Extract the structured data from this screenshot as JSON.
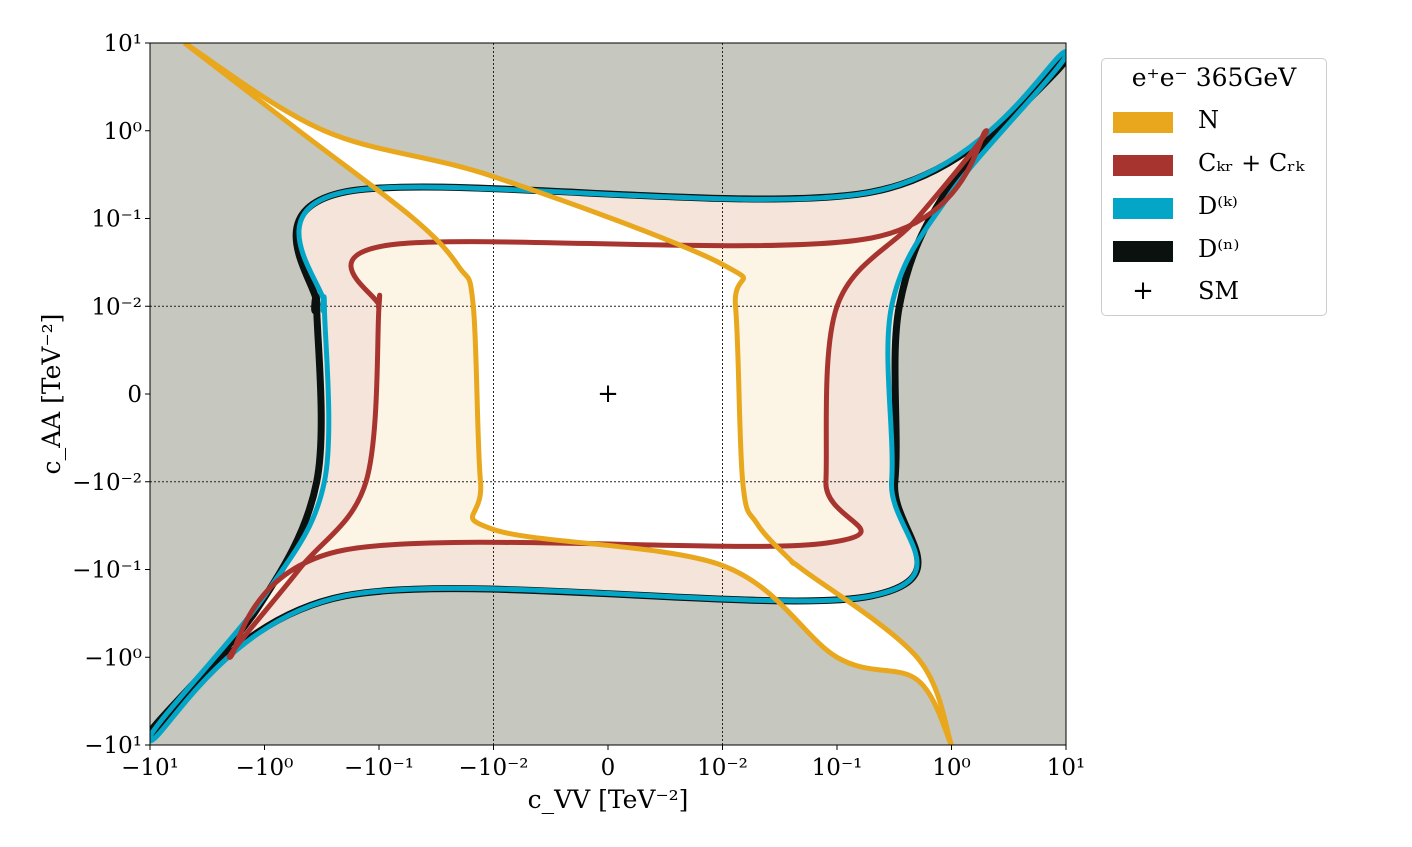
{
  "chart_data": {
    "type": "line",
    "xlabel": "c_{VV} [TeV^{-2}]",
    "ylabel": "c_{AA} [TeV^{-2}]",
    "xscale": "symlog",
    "yscale": "symlog",
    "linthresh": 0.01,
    "xlim": [
      -10,
      10
    ],
    "ylim": [
      -10,
      10
    ],
    "x_tick_values": [
      -10,
      -1,
      -0.1,
      -0.01,
      0,
      0.01,
      0.1,
      1,
      10
    ],
    "y_tick_values": [
      -10,
      -1,
      -0.1,
      -0.01,
      0,
      0.01,
      0.1,
      1,
      10
    ],
    "x_tick_labels": [
      "−10¹",
      "−10⁰",
      "−10⁻¹",
      "−10⁻²",
      "0",
      "10⁻²",
      "10⁻¹",
      "10⁰",
      "10¹"
    ],
    "y_tick_labels": [
      "−10¹",
      "−10⁰",
      "−10⁻¹",
      "−10⁻²",
      "0",
      "10⁻²",
      "10⁻¹",
      "10⁰",
      "10¹"
    ],
    "grid": "dotted lines at ±10⁻² on both axes",
    "background_color": "#c6c7bf",
    "legend_title": "e⁺e⁻ 365GeV",
    "legend_placement": "outside right, top",
    "series": [
      {
        "name": "N",
        "color": "#e8a71c",
        "fill": "#f4ebe6",
        "contours": [
          {
            "points": [
              [
                -5,
                10
              ],
              [
                -0.5,
                1
              ],
              [
                -0.05,
                0.1
              ],
              [
                -0.02,
                0.028
              ],
              [
                -0.015,
                0.01
              ],
              [
                -0.013,
                -0.01
              ],
              [
                -0.01,
                -0.035
              ],
              [
                0.01,
                -0.09
              ],
              [
                0.1,
                -1
              ],
              [
                0.5,
                -1.8
              ],
              [
                1,
                -10
              ]
            ]
          },
          {
            "points": [
              [
                -5,
                10
              ],
              [
                -0.3,
                1
              ],
              [
                -0.01,
                0.3
              ],
              [
                0.01,
                0.03
              ],
              [
                0.013,
                0.01
              ],
              [
                0.015,
                -0.01
              ],
              [
                0.02,
                -0.03
              ],
              [
                0.04,
                -0.08
              ],
              [
                0.05,
                -0.1
              ],
              [
                0.5,
                -1
              ],
              [
                1,
                -10
              ]
            ]
          }
        ]
      },
      {
        "name": "C_{kr} + C_{rk}",
        "color": "#a83430",
        "fill": "#f2e1d6",
        "contour": [
          [
            -0.1,
            0.01
          ],
          [
            -0.13,
            -0.01
          ],
          [
            -0.5,
            -0.1
          ],
          [
            -2,
            -1
          ],
          [
            -0.2,
            -0.06
          ],
          [
            0.08,
            -0.05
          ],
          [
            0.08,
            -0.01
          ],
          [
            0.1,
            0.01
          ],
          [
            0.5,
            0.1
          ],
          [
            2,
            1
          ],
          [
            0.2,
            0.06
          ],
          [
            -0.08,
            0.05
          ],
          [
            -0.1,
            0.01
          ]
        ]
      },
      {
        "name": "D^{(k)}",
        "color": "#04a6c8",
        "fill": "#fcf4e4",
        "contour": [
          [
            -0.3,
            0.01
          ],
          [
            -0.3,
            -0.01
          ],
          [
            -1,
            -0.2
          ],
          [
            -10,
            -9
          ],
          [
            -0.2,
            -0.2
          ],
          [
            0.2,
            -0.2
          ],
          [
            0.3,
            -0.01
          ],
          [
            0.3,
            0.01
          ],
          [
            1,
            0.2
          ],
          [
            10,
            8
          ],
          [
            0.2,
            0.2
          ],
          [
            -0.2,
            0.2
          ],
          [
            -0.3,
            0.01
          ]
        ]
      },
      {
        "name": "D^{(n)}",
        "color": "#0b110e",
        "contour": [
          [
            -0.35,
            0.01
          ],
          [
            -0.35,
            -0.01
          ],
          [
            -1.2,
            -0.3
          ],
          [
            -10,
            -8
          ],
          [
            -0.2,
            -0.2
          ],
          [
            0.2,
            -0.2
          ],
          [
            0.32,
            -0.01
          ],
          [
            0.35,
            0.01
          ],
          [
            1,
            0.25
          ],
          [
            10,
            7
          ],
          [
            0.2,
            0.2
          ],
          [
            -0.2,
            0.2
          ],
          [
            -0.35,
            0.01
          ]
        ]
      },
      {
        "name": "SM",
        "marker": "+",
        "color": "#000000",
        "points": [
          [
            0,
            0
          ]
        ]
      }
    ]
  },
  "legend": {
    "title": "e⁺e⁻ 365GeV",
    "items": [
      {
        "label": "N",
        "color": "#e8a71c"
      },
      {
        "label": "Cₖᵣ + Cᵣₖ",
        "color": "#a83430"
      },
      {
        "label": "D⁽ᵏ⁾",
        "color": "#04a6c8"
      },
      {
        "label": "D⁽ⁿ⁾",
        "color": "#0b110e"
      },
      {
        "label": "SM",
        "marker": "+"
      }
    ]
  },
  "axes": {
    "xlabel_display": "c_VV [TeV⁻²]",
    "ylabel_display": "c_AA [TeV⁻²]"
  }
}
